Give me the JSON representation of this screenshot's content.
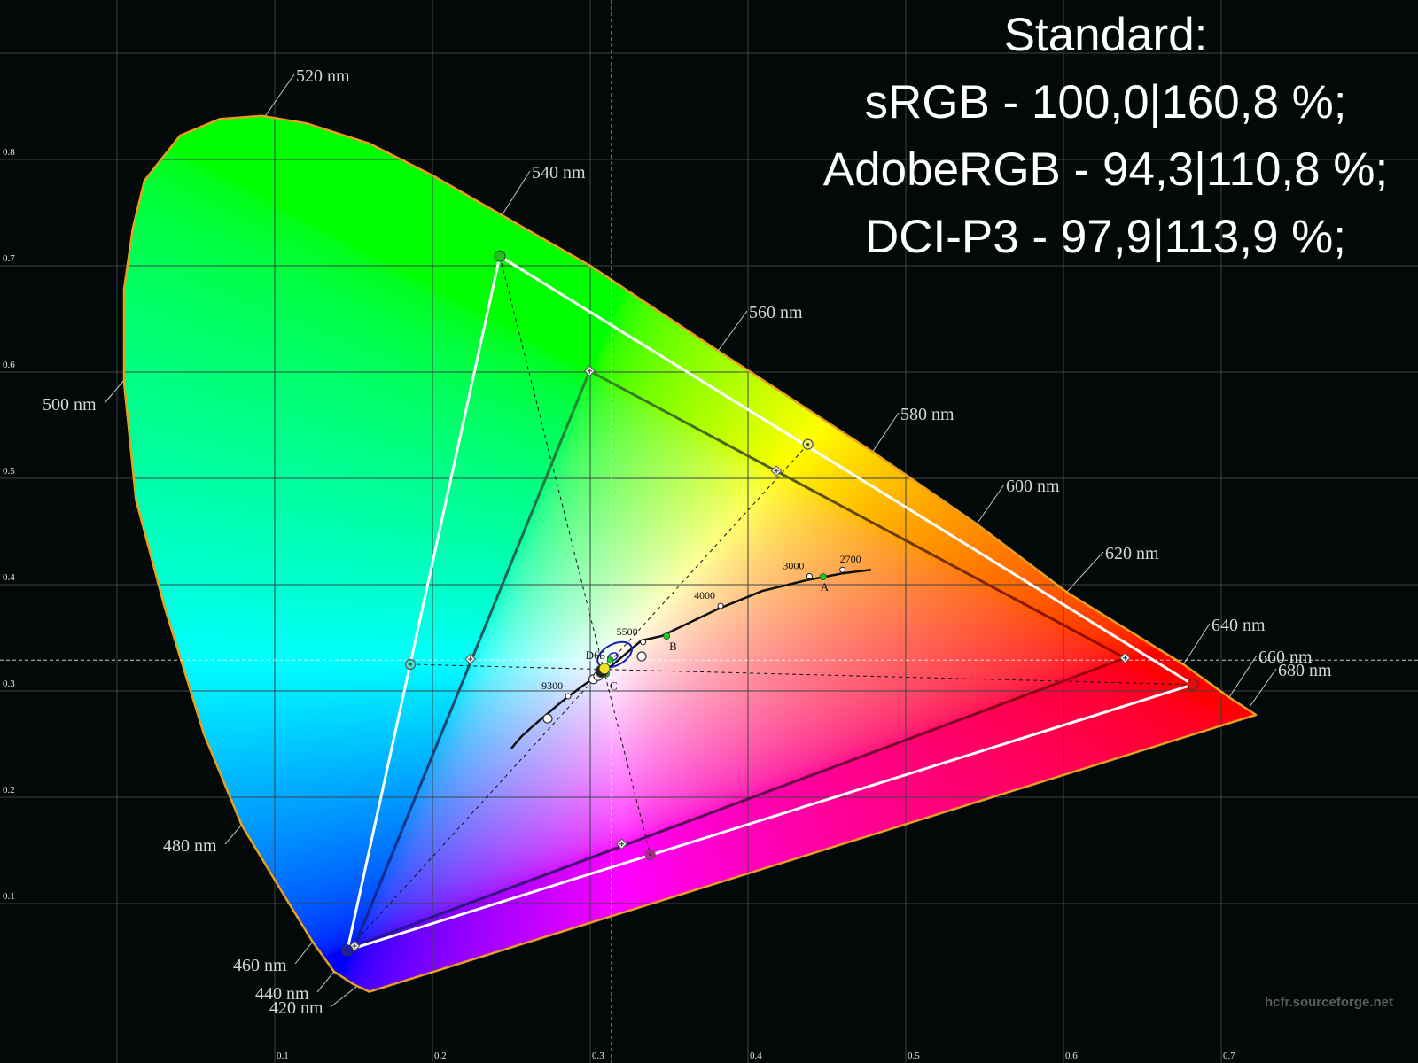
{
  "title": {
    "line1": "Standard:",
    "line2": "sRGB - 100,0|160,8 %;",
    "line3": "AdobeRGB - 94,3|110,8 %;",
    "line4": "DCI-P3 - 97,9|113,9 %;"
  },
  "watermark": "hcfr.sourceforge.net",
  "chart_data": {
    "type": "scatter",
    "subtype": "CIE 1931 xy chromaticity diagram",
    "xlim": [
      0,
      0.82
    ],
    "ylim": [
      0,
      0.95
    ],
    "grid": true,
    "x_ticks": [
      "0.1",
      "0.2",
      "0.3",
      "0.4",
      "0.5",
      "0.6",
      "0.7"
    ],
    "y_ticks": [
      "0.1",
      "0.2",
      "0.3",
      "0.4",
      "0.5",
      "0.6",
      "0.7",
      "0.8"
    ],
    "spectral_locus": [
      [
        0.16,
        0.017
      ],
      [
        0.15,
        0.024
      ],
      [
        0.1376,
        0.036
      ],
      [
        0.124,
        0.064
      ],
      [
        0.105,
        0.11
      ],
      [
        0.079,
        0.174
      ],
      [
        0.055,
        0.26
      ],
      [
        0.03,
        0.38
      ],
      [
        0.012,
        0.48
      ],
      [
        0.0045,
        0.59
      ],
      [
        0.0045,
        0.678
      ],
      [
        0.01,
        0.735
      ],
      [
        0.0174,
        0.78
      ],
      [
        0.04,
        0.8225
      ],
      [
        0.065,
        0.838
      ],
      [
        0.092,
        0.841
      ],
      [
        0.12,
        0.834
      ],
      [
        0.16,
        0.815
      ],
      [
        0.2,
        0.785
      ],
      [
        0.244,
        0.7475
      ],
      [
        0.3,
        0.7
      ],
      [
        0.381,
        0.62
      ],
      [
        0.479,
        0.525
      ],
      [
        0.545,
        0.457
      ],
      [
        0.602,
        0.393
      ],
      [
        0.676,
        0.325
      ],
      [
        0.705,
        0.294
      ],
      [
        0.722,
        0.2775
      ]
    ],
    "wavelength_labels": [
      {
        "label": "420 nm",
        "x": 0.152,
        "y": 0.022
      },
      {
        "label": "440 nm",
        "x": 0.1376,
        "y": 0.036
      },
      {
        "label": "460 nm",
        "x": 0.124,
        "y": 0.064
      },
      {
        "label": "480 nm",
        "x": 0.079,
        "y": 0.174
      },
      {
        "label": "500 nm",
        "x": 0.0045,
        "y": 0.5925
      },
      {
        "label": "520 nm",
        "x": 0.094,
        "y": 0.841
      },
      {
        "label": "540 nm",
        "x": 0.244,
        "y": 0.7475
      },
      {
        "label": "560 nm",
        "x": 0.381,
        "y": 0.62
      },
      {
        "label": "580 nm",
        "x": 0.479,
        "y": 0.525
      },
      {
        "label": "600 nm",
        "x": 0.545,
        "y": 0.457
      },
      {
        "label": "620 nm",
        "x": 0.602,
        "y": 0.393
      },
      {
        "label": "640 nm",
        "x": 0.676,
        "y": 0.325
      },
      {
        "label": "660 nm",
        "x": 0.705,
        "y": 0.294
      },
      {
        "label": "680 nm",
        "x": 0.718,
        "y": 0.285
      }
    ],
    "white_point_crosshair": {
      "x": 0.3135,
      "y": 0.329
    },
    "measured_primaries": {
      "red": {
        "x": 0.682,
        "y": 0.306,
        "color": "#e01010"
      },
      "green": {
        "x": 0.2427,
        "y": 0.709,
        "color": "#20c020"
      },
      "blue": {
        "x": 0.146,
        "y": 0.056,
        "color": "#2020a0"
      }
    },
    "measured_secondaries": {
      "cyan": {
        "x": 0.186,
        "y": 0.325,
        "color": "#40e0d0"
      },
      "yellow": {
        "x": 0.438,
        "y": 0.532,
        "color": "#f0f060"
      },
      "magenta": {
        "x": 0.338,
        "y": 0.146,
        "color": "#c020a0"
      }
    },
    "reference_primaries": {
      "red": {
        "x": 0.639,
        "y": 0.331,
        "color": "#a00000"
      },
      "green": {
        "x": 0.2996,
        "y": 0.601,
        "color": "#2a8a2a"
      },
      "blue": {
        "x": 0.1506,
        "y": 0.06,
        "color": "#1a1a9a"
      }
    },
    "reference_secondaries": {
      "cyan": {
        "x": 0.224,
        "y": 0.33
      },
      "yellow": {
        "x": 0.418,
        "y": 0.507
      },
      "magenta": {
        "x": 0.32,
        "y": 0.156
      }
    },
    "planckian_locus": [
      [
        0.25,
        0.246
      ],
      [
        0.2565,
        0.2573
      ],
      [
        0.264,
        0.2674
      ],
      [
        0.2806,
        0.2883
      ],
      [
        0.2848,
        0.2932
      ],
      [
        0.2952,
        0.3048
      ],
      [
        0.3135,
        0.3237
      ],
      [
        0.3324,
        0.3474
      ],
      [
        0.3451,
        0.3516
      ],
      [
        0.3805,
        0.3768
      ],
      [
        0.4091,
        0.3941
      ],
      [
        0.4369,
        0.4041
      ],
      [
        0.4599,
        0.4106
      ],
      [
        0.478,
        0.414
      ]
    ],
    "cct_points": [
      {
        "label": "9300",
        "x": 0.286,
        "y": 0.295
      },
      {
        "label": "5500",
        "x": 0.3335,
        "y": 0.346
      },
      {
        "label": "4000",
        "x": 0.3826,
        "y": 0.38
      },
      {
        "label": "3000",
        "x": 0.439,
        "y": 0.408
      },
      {
        "label": "2700",
        "x": 0.4599,
        "y": 0.414
      }
    ],
    "illuminants": [
      {
        "label": "A",
        "x": 0.4476,
        "y": 0.4074
      },
      {
        "label": "B",
        "x": 0.3484,
        "y": 0.3516
      },
      {
        "label": "C",
        "x": 0.3101,
        "y": 0.3162
      },
      {
        "label": "D65",
        "x": 0.3127,
        "y": 0.329
      }
    ],
    "grayscale_points": [
      {
        "x": 0.3326,
        "y": 0.3325
      },
      {
        "x": 0.273,
        "y": 0.274
      },
      {
        "x": 0.302,
        "y": 0.311
      },
      {
        "x": 0.305,
        "y": 0.314
      }
    ],
    "current_point": {
      "x": 0.309,
      "y": 0.321,
      "color": "#f0e020"
    },
    "colors": {
      "locus_outline": "#e8a020",
      "grid": "#3c4444",
      "background": "#030909",
      "tolerance_ellipse": "#1020c0"
    }
  }
}
